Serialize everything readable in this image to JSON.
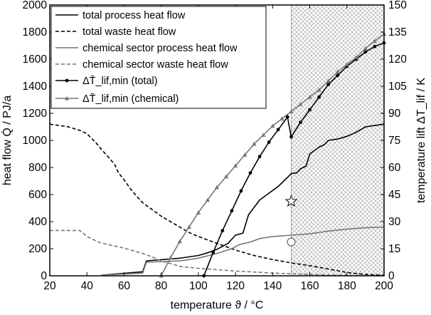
{
  "chart_data": {
    "type": "line",
    "title": "",
    "xlabel": "temperature ϑ / °C",
    "ylabel": "heat flow Q̇ / PJ/a",
    "y2label": "temperature lift ΔT_lif / K",
    "xlim": [
      20,
      200
    ],
    "ylim": [
      0,
      2000
    ],
    "y2lim": [
      0,
      150
    ],
    "xticks": [
      20,
      40,
      60,
      80,
      100,
      120,
      140,
      160,
      180,
      200
    ],
    "yticks": [
      0,
      200,
      400,
      600,
      800,
      1000,
      1200,
      1400,
      1600,
      1800,
      2000
    ],
    "y2ticks": [
      0,
      15,
      30,
      45,
      60,
      75,
      90,
      105,
      120,
      135,
      150
    ],
    "grid": false,
    "legend_position": "top-left",
    "shaded_region": {
      "x_from": 150,
      "x_to": 200,
      "pattern": "cross-hatch"
    },
    "series": [
      {
        "name": "total process heat flow",
        "axis": "left",
        "color": "#000000",
        "dash": "solid",
        "marker": "none",
        "points": [
          [
            48,
            5
          ],
          [
            70,
            30
          ],
          [
            72,
            110
          ],
          [
            90,
            130
          ],
          [
            100,
            150
          ],
          [
            105,
            170
          ],
          [
            110,
            195
          ],
          [
            116,
            240
          ],
          [
            120,
            300
          ],
          [
            124,
            315
          ],
          [
            127,
            450
          ],
          [
            130,
            505
          ],
          [
            133,
            560
          ],
          [
            137,
            600
          ],
          [
            140,
            630
          ],
          [
            143,
            660
          ],
          [
            146,
            700
          ],
          [
            149,
            740
          ],
          [
            150,
            755
          ],
          [
            153,
            760
          ],
          [
            155,
            790
          ],
          [
            158,
            810
          ],
          [
            160,
            900
          ],
          [
            165,
            950
          ],
          [
            168,
            970
          ],
          [
            170,
            1000
          ],
          [
            175,
            1010
          ],
          [
            180,
            1030
          ],
          [
            185,
            1060
          ],
          [
            190,
            1100
          ],
          [
            195,
            1110
          ],
          [
            200,
            1120
          ]
        ]
      },
      {
        "name": "total waste heat flow",
        "axis": "left",
        "color": "#000000",
        "dash": "dashed",
        "marker": "none",
        "points": [
          [
            20,
            1120
          ],
          [
            30,
            1100
          ],
          [
            36,
            1075
          ],
          [
            40,
            1050
          ],
          [
            45,
            980
          ],
          [
            48,
            930
          ],
          [
            52,
            870
          ],
          [
            55,
            820
          ],
          [
            57,
            760
          ],
          [
            60,
            710
          ],
          [
            63,
            650
          ],
          [
            66,
            600
          ],
          [
            70,
            540
          ],
          [
            75,
            490
          ],
          [
            80,
            440
          ],
          [
            85,
            400
          ],
          [
            90,
            360
          ],
          [
            95,
            320
          ],
          [
            100,
            290
          ],
          [
            110,
            240
          ],
          [
            120,
            190
          ],
          [
            130,
            150
          ],
          [
            140,
            120
          ],
          [
            150,
            95
          ],
          [
            160,
            75
          ],
          [
            170,
            50
          ],
          [
            180,
            25
          ],
          [
            190,
            10
          ],
          [
            200,
            5
          ]
        ]
      },
      {
        "name": "chemical sector process heat flow",
        "axis": "left",
        "color": "#777777",
        "dash": "solid",
        "marker": "none",
        "points": [
          [
            48,
            5
          ],
          [
            70,
            20
          ],
          [
            72,
            100
          ],
          [
            90,
            110
          ],
          [
            95,
            120
          ],
          [
            100,
            130
          ],
          [
            110,
            165
          ],
          [
            118,
            200
          ],
          [
            122,
            230
          ],
          [
            128,
            250
          ],
          [
            133,
            275
          ],
          [
            140,
            290
          ],
          [
            145,
            295
          ],
          [
            150,
            300
          ],
          [
            160,
            310
          ],
          [
            170,
            330
          ],
          [
            180,
            345
          ],
          [
            190,
            355
          ],
          [
            200,
            360
          ]
        ]
      },
      {
        "name": "chemical sector waste heat flow",
        "axis": "left",
        "color": "#777777",
        "dash": "dashed",
        "marker": "none",
        "points": [
          [
            20,
            335
          ],
          [
            36,
            335
          ],
          [
            38,
            315
          ],
          [
            40,
            290
          ],
          [
            43,
            270
          ],
          [
            46,
            250
          ],
          [
            50,
            235
          ],
          [
            55,
            220
          ],
          [
            60,
            205
          ],
          [
            65,
            185
          ],
          [
            70,
            165
          ],
          [
            75,
            140
          ],
          [
            80,
            110
          ],
          [
            85,
            90
          ],
          [
            90,
            70
          ],
          [
            100,
            55
          ],
          [
            110,
            45
          ],
          [
            120,
            35
          ],
          [
            130,
            28
          ],
          [
            140,
            20
          ],
          [
            150,
            15
          ],
          [
            160,
            10
          ],
          [
            170,
            6
          ],
          [
            180,
            4
          ],
          [
            190,
            2
          ],
          [
            200,
            1
          ]
        ]
      },
      {
        "name": "ΔT̄_lif,min (total)",
        "axis": "right",
        "color": "#000000",
        "dash": "solid",
        "marker": "circle",
        "points": [
          [
            103,
            0
          ],
          [
            108,
            13
          ],
          [
            113,
            25
          ],
          [
            118,
            36
          ],
          [
            123,
            47
          ],
          [
            128,
            57
          ],
          [
            133,
            66
          ],
          [
            138,
            74
          ],
          [
            143,
            81
          ],
          [
            148,
            88
          ],
          [
            150,
            77
          ],
          [
            155,
            85
          ],
          [
            160,
            92
          ],
          [
            165,
            99
          ],
          [
            170,
            106
          ],
          [
            175,
            111
          ],
          [
            180,
            116
          ],
          [
            185,
            120
          ],
          [
            190,
            124
          ],
          [
            195,
            127
          ],
          [
            200,
            129
          ]
        ]
      },
      {
        "name": "ΔT̄_lif,min (chemical)",
        "axis": "right",
        "color": "#777777",
        "dash": "solid",
        "marker": "triangle",
        "points": [
          [
            80,
            0
          ],
          [
            85,
            10
          ],
          [
            90,
            19
          ],
          [
            95,
            27
          ],
          [
            100,
            35
          ],
          [
            105,
            42
          ],
          [
            110,
            49
          ],
          [
            115,
            55
          ],
          [
            120,
            61
          ],
          [
            125,
            67
          ],
          [
            130,
            73
          ],
          [
            135,
            78
          ],
          [
            140,
            83
          ],
          [
            145,
            87
          ],
          [
            150,
            91
          ],
          [
            155,
            95
          ],
          [
            160,
            99
          ],
          [
            165,
            103
          ],
          [
            170,
            108
          ],
          [
            175,
            113
          ],
          [
            180,
            117
          ],
          [
            185,
            121
          ],
          [
            190,
            126
          ],
          [
            195,
            130
          ],
          [
            200,
            134
          ]
        ]
      }
    ],
    "annotation_markers": [
      {
        "type": "star",
        "x": 150,
        "y": 550,
        "axis": "left"
      },
      {
        "type": "circle",
        "x": 150,
        "y": 250,
        "axis": "left"
      }
    ]
  }
}
